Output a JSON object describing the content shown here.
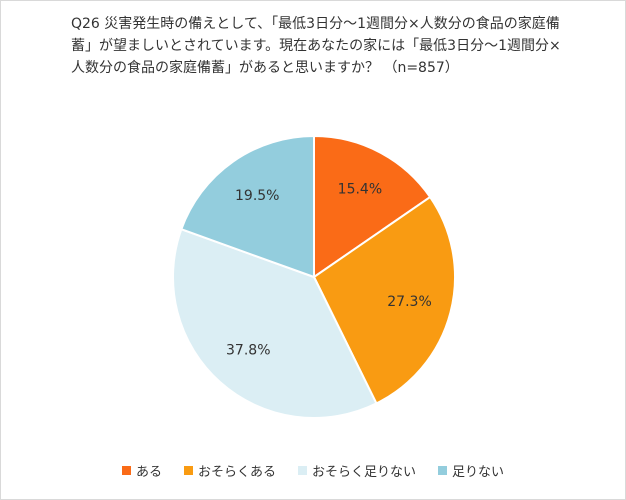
{
  "chart_data": {
    "type": "pie",
    "title": "Q26 災害発生時の備えとして、「最低3日分～1週間分×人数分の食品の家庭備蓄」が望ましいとされています。現在あなたの家には「最低3日分～1週間分×人数分の食品の家庭備蓄」があると思いますか？ （n=857）",
    "categories": [
      "ある",
      "おそらくある",
      "おそらく足りない",
      "足りない"
    ],
    "values": [
      15.4,
      27.3,
      37.8,
      19.5
    ],
    "value_labels": [
      "15.4%",
      "27.3%",
      "37.8%",
      "19.5%"
    ],
    "colors": [
      "#fa6b17",
      "#f99b12",
      "#dbeef4",
      "#93cddd"
    ],
    "legend": "bottom"
  }
}
